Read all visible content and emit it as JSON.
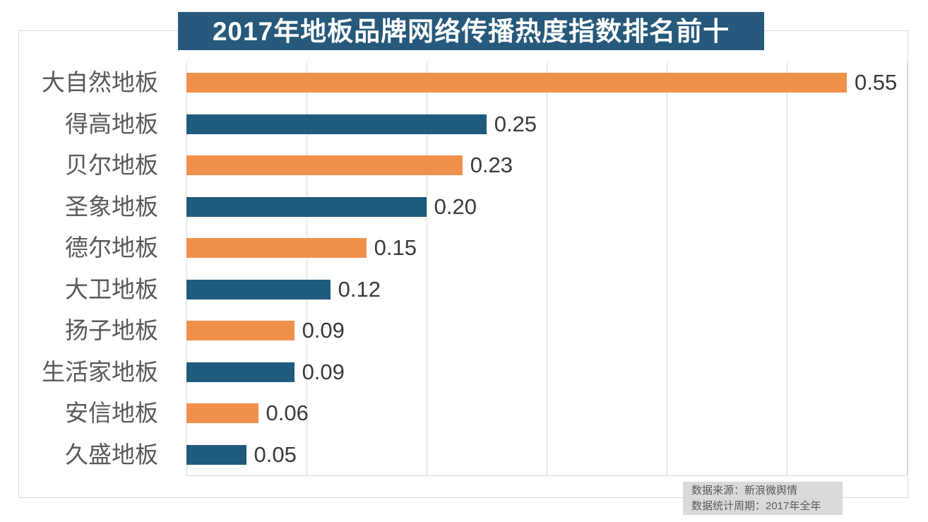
{
  "title": "2017年地板品牌网络传播热度指数排名前十",
  "chart_data": {
    "type": "bar",
    "orientation": "horizontal",
    "title": "2017年地板品牌网络传播热度指数排名前十",
    "categories": [
      "大自然地板",
      "得高地板",
      "贝尔地板",
      "圣象地板",
      "德尔地板",
      "大卫地板",
      "扬子地板",
      "生活家地板",
      "安信地板",
      "久盛地板"
    ],
    "values": [
      0.55,
      0.25,
      0.23,
      0.2,
      0.15,
      0.12,
      0.09,
      0.09,
      0.06,
      0.05
    ],
    "value_labels": [
      "0.55",
      "0.25",
      "0.23",
      "0.20",
      "0.15",
      "0.12",
      "0.09",
      "0.09",
      "0.06",
      "0.05"
    ],
    "xlim": [
      0,
      0.6
    ],
    "grid_step": 0.1,
    "grid": true,
    "legend": "none",
    "xlabel": "",
    "ylabel": ""
  },
  "colors": {
    "bar_orange": "#f0914b",
    "bar_teal": "#1f5b7d",
    "title_bg": "#26597b",
    "grid": "#d9d9d9",
    "note_bg": "#dadada"
  },
  "footer": {
    "source_line": "数据来源：新浪微舆情",
    "period_line": "数据统计周期：2017年全年"
  }
}
